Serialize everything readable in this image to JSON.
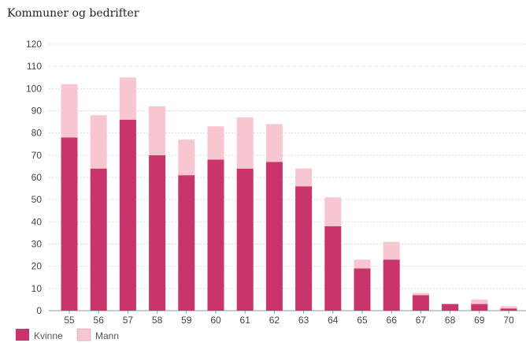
{
  "title": "Kommuner og bedrifter",
  "chart_data": {
    "type": "bar",
    "stacked": true,
    "categories": [
      "55",
      "56",
      "57",
      "58",
      "59",
      "60",
      "61",
      "62",
      "63",
      "64",
      "65",
      "66",
      "67",
      "68",
      "69",
      "70"
    ],
    "series": [
      {
        "name": "Kvinne",
        "color": "#c9346a",
        "values": [
          78,
          64,
          86,
          70,
          61,
          68,
          64,
          67,
          56,
          38,
          19,
          23,
          7,
          3,
          3,
          1
        ]
      },
      {
        "name": "Mann",
        "color": "#f7c6d1",
        "values": [
          24,
          24,
          19,
          22,
          16,
          15,
          23,
          17,
          8,
          13,
          4,
          8,
          1,
          0,
          2,
          1
        ]
      }
    ],
    "ylim": [
      0,
      120
    ],
    "yticks": [
      0,
      10,
      20,
      30,
      40,
      50,
      60,
      70,
      80,
      90,
      100,
      110,
      120
    ],
    "grid": true,
    "legend": "bottom-left",
    "xlabel": "",
    "ylabel": ""
  }
}
